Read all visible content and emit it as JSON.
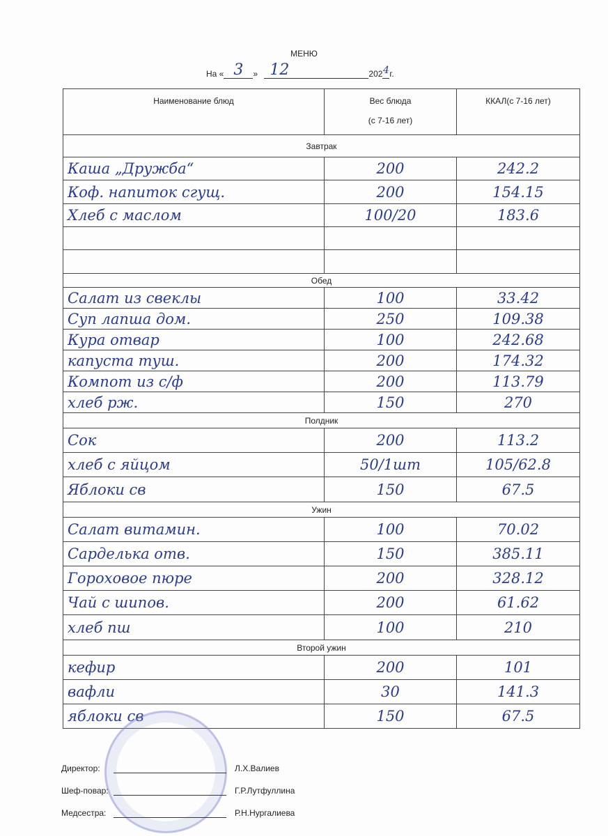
{
  "title": "МЕНЮ",
  "dateline": {
    "prefix": "На «",
    "day": "3",
    "mid": "»",
    "month": "12",
    "year_prefix": "202",
    "year_digit": "4",
    "suffix": "г."
  },
  "table": {
    "headers": [
      "Наименование блюд",
      "Вес блюда",
      "(с 7-16 лет)",
      "ККАЛ(с 7-16 лет)"
    ],
    "sections": [
      {
        "name": "Завтрак",
        "rows": [
          [
            "Каша „Дружба“",
            "200",
            "242.2"
          ],
          [
            "Коф. напиток сгущ.",
            "200",
            "154.15"
          ],
          [
            "Хлеб с маслом",
            "100/20",
            "183.6"
          ],
          [
            "",
            "",
            ""
          ],
          [
            "",
            "",
            ""
          ]
        ]
      },
      {
        "name": "Обед",
        "rows": [
          [
            "Салат из свеклы",
            "100",
            "33.42"
          ],
          [
            "Суп лапша дом.",
            "250",
            "109.38"
          ],
          [
            "Кура отвар",
            "100",
            "242.68"
          ],
          [
            "капуста туш.",
            "200",
            "174.32"
          ],
          [
            "Компот из с/ф",
            "200",
            "113.79"
          ],
          [
            "хлеб рж.",
            "150",
            "270"
          ]
        ]
      },
      {
        "name": "Полдник",
        "rows": [
          [
            "Сок",
            "200",
            "113.2"
          ],
          [
            "хлеб с яйцом",
            "50/1шт",
            "105/62.8"
          ],
          [
            "Яблоки св",
            "150",
            "67.5"
          ]
        ]
      },
      {
        "name": "Ужин",
        "rows": [
          [
            "Салат витамин.",
            "100",
            "70.02"
          ],
          [
            "Сарделька отв.",
            "150",
            "385.11"
          ],
          [
            "Гороховое пюре",
            "200",
            "328.12"
          ],
          [
            "Чай с шипов.",
            "200",
            "61.62"
          ],
          [
            "хлеб пш",
            "100",
            "210"
          ]
        ]
      },
      {
        "name": "Второй ужин",
        "rows": [
          [
            "кефир",
            "200",
            "101"
          ],
          [
            "вафли",
            "30",
            "141.3"
          ],
          [
            "яблоки св",
            "150",
            "67.5"
          ]
        ]
      }
    ]
  },
  "signatures": [
    {
      "role": "Директор:",
      "name": "Л.Х.Валиев"
    },
    {
      "role": "Шеф-повар:",
      "name": "Г.Р.Лутфуллина"
    },
    {
      "role": "Медсестра:",
      "name": "Р.Н.Нургалиева"
    }
  ],
  "colors": {
    "ink": "#2b3c8f",
    "stamp": "#6e78c8"
  }
}
